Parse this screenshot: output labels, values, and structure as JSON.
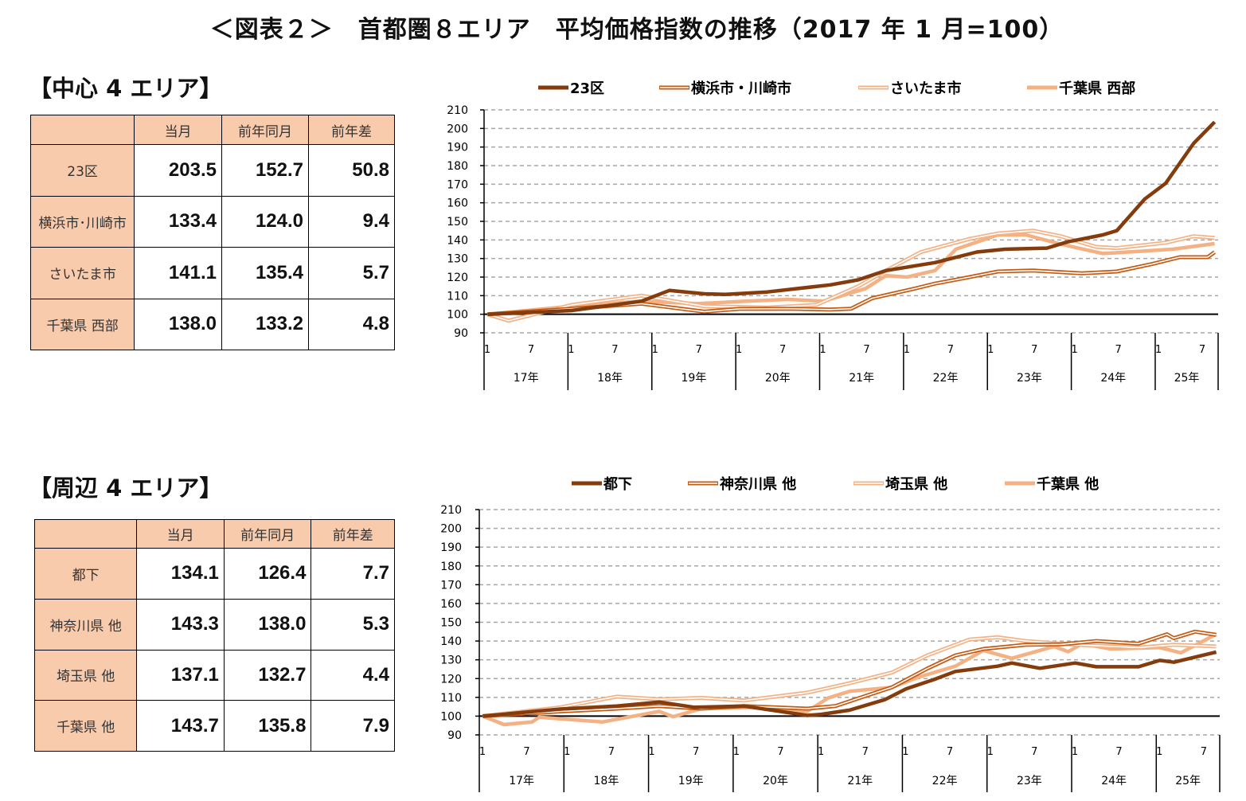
{
  "title": "＜図表２＞　首都圏８エリア　平均価格指数の推移（2017 年 1 月=100）",
  "colors": {
    "dark": "#843C0C",
    "medium": "#C55A11",
    "light": "#F4B183",
    "table_header": "#F8CBAD",
    "grid": "#A6A6A6"
  },
  "sections": [
    {
      "heading": "【中心 4 エリア】",
      "table": {
        "columns": [
          "",
          "当月",
          "前年同月",
          "前年差"
        ],
        "rows": [
          {
            "area": "23区",
            "current": "203.5",
            "prev_year": "152.7",
            "diff": "50.8"
          },
          {
            "area": "横浜市･川崎市",
            "current": "133.4",
            "prev_year": "124.0",
            "diff": "9.4"
          },
          {
            "area": "さいたま市",
            "current": "141.1",
            "prev_year": "135.4",
            "diff": "5.7"
          },
          {
            "area": "千葉県 西部",
            "current": "138.0",
            "prev_year": "133.2",
            "diff": "4.8"
          }
        ]
      }
    },
    {
      "heading": "【周辺 4 エリア】",
      "table": {
        "columns": [
          "",
          "当月",
          "前年同月",
          "前年差"
        ],
        "rows": [
          {
            "area": "都下",
            "current": "134.1",
            "prev_year": "126.4",
            "diff": "7.7"
          },
          {
            "area": "神奈川県 他",
            "current": "143.3",
            "prev_year": "138.0",
            "diff": "5.3"
          },
          {
            "area": "埼玉県 他",
            "current": "137.1",
            "prev_year": "132.7",
            "diff": "4.4"
          },
          {
            "area": "千葉県 他",
            "current": "143.7",
            "prev_year": "135.8",
            "diff": "7.9"
          }
        ]
      }
    }
  ],
  "chart_data": [
    {
      "type": "line",
      "ylim": [
        90,
        210
      ],
      "yticks": [
        90,
        100,
        110,
        120,
        130,
        140,
        150,
        160,
        170,
        180,
        190,
        200,
        210
      ],
      "grid": true,
      "legend_position": "top",
      "x_range": [
        "2017-01",
        "2025-09"
      ],
      "month_tick_labels": [
        "1",
        "7"
      ],
      "year_labels": [
        "17年",
        "18年",
        "19年",
        "20年",
        "21年",
        "22年",
        "23年",
        "24年",
        "25年"
      ],
      "series": [
        {
          "name": "23区",
          "style": "thick",
          "color": "#843C0C",
          "points": [
            [
              "2017-01",
              100
            ],
            [
              "2018-01",
              102
            ],
            [
              "2018-11",
              107
            ],
            [
              "2019-03",
              112.8
            ],
            [
              "2019-08",
              111
            ],
            [
              "2019-11",
              110.7
            ],
            [
              "2020-05",
              112
            ],
            [
              "2021-02",
              115.8
            ],
            [
              "2021-06",
              118.5
            ],
            [
              "2021-10",
              123.5
            ],
            [
              "2022-05",
              127.8
            ],
            [
              "2022-11",
              133.5
            ],
            [
              "2023-03",
              135
            ],
            [
              "2023-09",
              135.6
            ],
            [
              "2023-12",
              139
            ],
            [
              "2024-05",
              142.7
            ],
            [
              "2024-07",
              145
            ],
            [
              "2024-11",
              162
            ],
            [
              "2025-02",
              170.5
            ],
            [
              "2025-06",
              192
            ],
            [
              "2025-09",
              203.5
            ]
          ]
        },
        {
          "name": "横浜市・川崎市",
          "style": "double",
          "color": "#C55A11",
          "points": [
            [
              "2017-01",
              100
            ],
            [
              "2018-01",
              103
            ],
            [
              "2018-11",
              105.7
            ],
            [
              "2019-08",
              101.4
            ],
            [
              "2020-01",
              102.9
            ],
            [
              "2020-08",
              103
            ],
            [
              "2021-02",
              102.5
            ],
            [
              "2021-05",
              103
            ],
            [
              "2021-08",
              108.6
            ],
            [
              "2022-02",
              113.7
            ],
            [
              "2022-05",
              116.5
            ],
            [
              "2022-09",
              119.3
            ],
            [
              "2023-02",
              123
            ],
            [
              "2023-07",
              123.5
            ],
            [
              "2024-02",
              122
            ],
            [
              "2024-07",
              123
            ],
            [
              "2024-12",
              127
            ],
            [
              "2025-04",
              130.7
            ],
            [
              "2025-08",
              130.7
            ],
            [
              "2025-09",
              133.4
            ]
          ]
        },
        {
          "name": "さいたま市",
          "style": "double",
          "color": "#F4B183",
          "points": [
            [
              "2017-01",
              100
            ],
            [
              "2017-04",
              96.5
            ],
            [
              "2018-01",
              105
            ],
            [
              "2018-11",
              110
            ],
            [
              "2019-08",
              104.3
            ],
            [
              "2020-05",
              103.6
            ],
            [
              "2020-12",
              105
            ],
            [
              "2021-06",
              115
            ],
            [
              "2021-10",
              123.5
            ],
            [
              "2022-03",
              133.5
            ],
            [
              "2022-10",
              140.6
            ],
            [
              "2023-02",
              143.5
            ],
            [
              "2023-07",
              145
            ],
            [
              "2023-11",
              142
            ],
            [
              "2024-04",
              136.3
            ],
            [
              "2024-07",
              135.6
            ],
            [
              "2025-02",
              138.5
            ],
            [
              "2025-06",
              142
            ],
            [
              "2025-09",
              141.1
            ]
          ]
        },
        {
          "name": "千葉県 西部",
          "style": "thick",
          "color": "#F4B183",
          "points": [
            [
              "2017-01",
              100
            ],
            [
              "2018-01",
              104.3
            ],
            [
              "2018-11",
              107
            ],
            [
              "2019-07",
              105.7
            ],
            [
              "2020-02",
              107
            ],
            [
              "2020-08",
              108
            ],
            [
              "2021-01",
              107
            ],
            [
              "2021-07",
              113.7
            ],
            [
              "2021-10",
              120.8
            ],
            [
              "2022-01",
              120
            ],
            [
              "2022-05",
              123.5
            ],
            [
              "2022-08",
              135
            ],
            [
              "2023-02",
              142.7
            ],
            [
              "2023-06",
              142.7
            ],
            [
              "2023-11",
              137.7
            ],
            [
              "2024-05",
              132.7
            ],
            [
              "2024-11",
              134
            ],
            [
              "2025-03",
              135
            ],
            [
              "2025-09",
              138
            ]
          ]
        }
      ]
    },
    {
      "type": "line",
      "ylim": [
        90,
        210
      ],
      "yticks": [
        90,
        100,
        110,
        120,
        130,
        140,
        150,
        160,
        170,
        180,
        190,
        200,
        210
      ],
      "grid": true,
      "legend_position": "top",
      "x_range": [
        "2017-01",
        "2025-09"
      ],
      "month_tick_labels": [
        "1",
        "7"
      ],
      "year_labels": [
        "17年",
        "18年",
        "19年",
        "20年",
        "21年",
        "22年",
        "23年",
        "24年",
        "25年"
      ],
      "series": [
        {
          "name": "都下",
          "style": "thick",
          "color": "#843C0C",
          "points": [
            [
              "2017-01",
              100
            ],
            [
              "2017-12",
              103.8
            ],
            [
              "2018-08",
              105.4
            ],
            [
              "2019-02",
              107.5
            ],
            [
              "2019-07",
              104.7
            ],
            [
              "2020-02",
              105.4
            ],
            [
              "2020-11",
              100.4
            ],
            [
              "2021-01",
              101
            ],
            [
              "2021-05",
              103.2
            ],
            [
              "2021-10",
              108.8
            ],
            [
              "2022-01",
              114.5
            ],
            [
              "2022-05",
              119.5
            ],
            [
              "2022-08",
              123.8
            ],
            [
              "2023-02",
              126.6
            ],
            [
              "2023-04",
              128.3
            ],
            [
              "2023-08",
              125.5
            ],
            [
              "2024-01",
              128.3
            ],
            [
              "2024-04",
              126.3
            ],
            [
              "2024-10",
              126.3
            ],
            [
              "2025-01",
              129.7
            ],
            [
              "2025-03",
              128.7
            ],
            [
              "2025-09",
              134.1
            ]
          ]
        },
        {
          "name": "神奈川県 他",
          "style": "double",
          "color": "#C55A11",
          "points": [
            [
              "2017-01",
              100
            ],
            [
              "2017-12",
              102.5
            ],
            [
              "2018-08",
              104
            ],
            [
              "2019-02",
              105.4
            ],
            [
              "2019-08",
              104
            ],
            [
              "2020-02",
              105.4
            ],
            [
              "2020-11",
              104
            ],
            [
              "2021-03",
              105.4
            ],
            [
              "2021-07",
              110.4
            ],
            [
              "2021-11",
              115.3
            ],
            [
              "2022-04",
              125.3
            ],
            [
              "2022-08",
              132.3
            ],
            [
              "2022-12",
              135.8
            ],
            [
              "2023-06",
              138
            ],
            [
              "2023-11",
              138.2
            ],
            [
              "2024-04",
              140
            ],
            [
              "2024-10",
              138.6
            ],
            [
              "2025-02",
              143.6
            ],
            [
              "2025-03",
              141.5
            ],
            [
              "2025-06",
              145
            ],
            [
              "2025-09",
              143.3
            ]
          ]
        },
        {
          "name": "埼玉県 他",
          "style": "double",
          "color": "#F4B183",
          "points": [
            [
              "2017-01",
              100
            ],
            [
              "2017-12",
              104.7
            ],
            [
              "2018-08",
              110.4
            ],
            [
              "2019-02",
              109
            ],
            [
              "2019-08",
              109.7
            ],
            [
              "2020-02",
              108.3
            ],
            [
              "2020-11",
              112.5
            ],
            [
              "2021-05",
              117.5
            ],
            [
              "2021-11",
              123.2
            ],
            [
              "2022-04",
              132.3
            ],
            [
              "2022-10",
              140.8
            ],
            [
              "2023-02",
              142
            ],
            [
              "2023-06",
              140
            ],
            [
              "2024-01",
              138
            ],
            [
              "2024-10",
              136.5
            ],
            [
              "2025-03",
              138
            ],
            [
              "2025-09",
              137.1
            ]
          ]
        },
        {
          "name": "千葉県 他",
          "style": "thick",
          "color": "#F4B183",
          "points": [
            [
              "2017-01",
              100
            ],
            [
              "2017-04",
              95.5
            ],
            [
              "2017-08",
              96.9
            ],
            [
              "2017-09",
              99.4
            ],
            [
              "2018-06",
              96.9
            ],
            [
              "2019-02",
              102.5
            ],
            [
              "2019-04",
              99.7
            ],
            [
              "2019-08",
              104
            ],
            [
              "2020-04",
              104.7
            ],
            [
              "2020-11",
              102.5
            ],
            [
              "2021-02",
              109.7
            ],
            [
              "2021-05",
              113.2
            ],
            [
              "2021-11",
              115.3
            ],
            [
              "2022-03",
              121
            ],
            [
              "2022-08",
              126.6
            ],
            [
              "2022-12",
              135
            ],
            [
              "2023-04",
              130.8
            ],
            [
              "2023-10",
              137.1
            ],
            [
              "2023-12",
              134.3
            ],
            [
              "2024-02",
              138.6
            ],
            [
              "2024-06",
              135.8
            ],
            [
              "2025-01",
              136.5
            ],
            [
              "2025-04",
              133.7
            ],
            [
              "2025-09",
              143.7
            ]
          ]
        }
      ]
    }
  ]
}
